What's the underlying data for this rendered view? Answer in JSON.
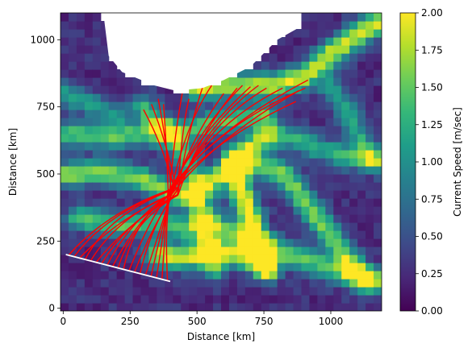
{
  "chart_data": {
    "type": "heatmap",
    "xlabel": "Distance [km]",
    "ylabel": "Distance [km]",
    "xlim": [
      -10,
      1190
    ],
    "ylim": [
      -10,
      1100
    ],
    "xticks": [
      0,
      250,
      500,
      750,
      1000
    ],
    "yticks": [
      0,
      250,
      500,
      750,
      1000
    ],
    "colorbar": {
      "label": "Current Speed [m/sec]",
      "range": [
        0,
        2.0
      ],
      "ticks": [
        "0.00",
        "0.25",
        "0.50",
        "0.75",
        "1.00",
        "1.25",
        "1.50",
        "1.75",
        "2.00"
      ],
      "colormap": "viridis"
    },
    "land_region": {
      "color": "#ffffff",
      "outline": [
        [
          150,
          1100
        ],
        [
          890,
          1100
        ],
        [
          890,
          1050
        ],
        [
          800,
          1000
        ],
        [
          700,
          900
        ],
        [
          600,
          850
        ],
        [
          520,
          820
        ],
        [
          420,
          810
        ],
        [
          340,
          830
        ],
        [
          220,
          880
        ],
        [
          170,
          940
        ],
        [
          160,
          1020
        ],
        [
          150,
          1100
        ]
      ]
    },
    "current_features": [
      {
        "path": [
          [
            1180,
            1070
          ],
          [
            1000,
            950
          ],
          [
            900,
            860
          ],
          [
            780,
            830
          ],
          [
            600,
            830
          ],
          [
            500,
            820
          ]
        ],
        "speed": 1.6
      },
      {
        "path": [
          [
            0,
            650
          ],
          [
            150,
            640
          ],
          [
            300,
            650
          ],
          [
            450,
            660
          ],
          [
            600,
            700
          ],
          [
            750,
            720
          ]
        ],
        "speed": 1.2
      },
      {
        "path": [
          [
            0,
            500
          ],
          [
            150,
            510
          ],
          [
            300,
            480
          ],
          [
            400,
            430
          ],
          [
            470,
            420
          ],
          [
            560,
            470
          ],
          [
            650,
            560
          ],
          [
            750,
            640
          ]
        ],
        "speed": 1.4
      },
      {
        "path": [
          [
            60,
            340
          ],
          [
            200,
            310
          ],
          [
            350,
            320
          ],
          [
            450,
            300
          ],
          [
            550,
            320
          ],
          [
            700,
            260
          ],
          [
            850,
            200
          ],
          [
            1000,
            150
          ],
          [
            1180,
            100
          ]
        ],
        "speed": 1.2
      },
      {
        "path": [
          [
            650,
            500
          ],
          [
            670,
            420
          ],
          [
            700,
            340
          ],
          [
            720,
            260
          ],
          [
            760,
            150
          ]
        ],
        "speed": 1.8
      },
      {
        "path": [
          [
            650,
            560
          ],
          [
            750,
            530
          ],
          [
            830,
            500
          ],
          [
            900,
            400
          ],
          [
            980,
            300
          ],
          [
            1050,
            200
          ],
          [
            1120,
            110
          ]
        ],
        "speed": 1.3
      },
      {
        "path": [
          [
            300,
            750
          ],
          [
            350,
            700
          ],
          [
            420,
            620
          ],
          [
            470,
            540
          ],
          [
            500,
            450
          ],
          [
            520,
            350
          ],
          [
            540,
            250
          ],
          [
            560,
            150
          ]
        ],
        "speed": 1.1
      },
      {
        "path": [
          [
            800,
            650
          ],
          [
            900,
            620
          ],
          [
            1000,
            580
          ],
          [
            1100,
            560
          ],
          [
            1180,
            550
          ]
        ],
        "speed": 1.0
      },
      {
        "path": [
          [
            1000,
            820
          ],
          [
            1050,
            750
          ],
          [
            1100,
            650
          ],
          [
            1150,
            560
          ]
        ],
        "speed": 0.9
      },
      {
        "path": [
          [
            0,
            800
          ],
          [
            100,
            760
          ],
          [
            200,
            720
          ]
        ],
        "speed": 0.8
      },
      {
        "path": [
          [
            350,
            200
          ],
          [
            450,
            190
          ],
          [
            550,
            210
          ],
          [
            650,
            200
          ],
          [
            750,
            170
          ]
        ],
        "speed": 1.6
      }
    ],
    "transect_line": {
      "color": "#ffffff",
      "points": [
        [
          10,
          200
        ],
        [
          400,
          100
        ]
      ]
    },
    "trajectories": {
      "color": "#ff0000",
      "start_line": [
        [
          10,
          200
        ],
        [
          400,
          100
        ]
      ],
      "junction": [
        410,
        430
      ],
      "end_points": [
        [
          300,
          740
        ],
        [
          330,
          760
        ],
        [
          355,
          780
        ],
        [
          375,
          760
        ],
        [
          445,
          800
        ],
        [
          470,
          780
        ],
        [
          520,
          820
        ],
        [
          555,
          830
        ],
        [
          600,
          800
        ],
        [
          650,
          820
        ],
        [
          670,
          830
        ],
        [
          700,
          825
        ],
        [
          730,
          830
        ],
        [
          760,
          820
        ],
        [
          820,
          820
        ],
        [
          880,
          810
        ],
        [
          915,
          850
        ],
        [
          905,
          820
        ],
        [
          870,
          770
        ]
      ]
    }
  }
}
